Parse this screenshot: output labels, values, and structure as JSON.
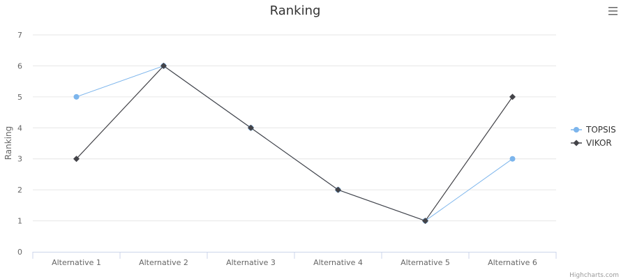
{
  "menu_icon": "hamburger-menu-icon",
  "credits": "Highcharts.com",
  "chart_data": {
    "type": "line",
    "title": "Ranking",
    "xlabel": "",
    "ylabel": "Ranking",
    "categories": [
      "Alternative 1",
      "Alternative 2",
      "Alternative 3",
      "Alternative 4",
      "Alternative 5",
      "Alternative 6"
    ],
    "ylim": [
      0,
      7
    ],
    "yticks": [
      0,
      1,
      2,
      3,
      4,
      5,
      6,
      7
    ],
    "grid": true,
    "legend_position": "right",
    "series": [
      {
        "name": "TOPSIS",
        "values": [
          5,
          6,
          4,
          2,
          1,
          3
        ],
        "color": "#7cb5ec",
        "marker": "circle"
      },
      {
        "name": "VIKOR",
        "values": [
          3,
          6,
          4,
          2,
          1,
          5
        ],
        "color": "#434348",
        "marker": "diamond"
      }
    ]
  }
}
